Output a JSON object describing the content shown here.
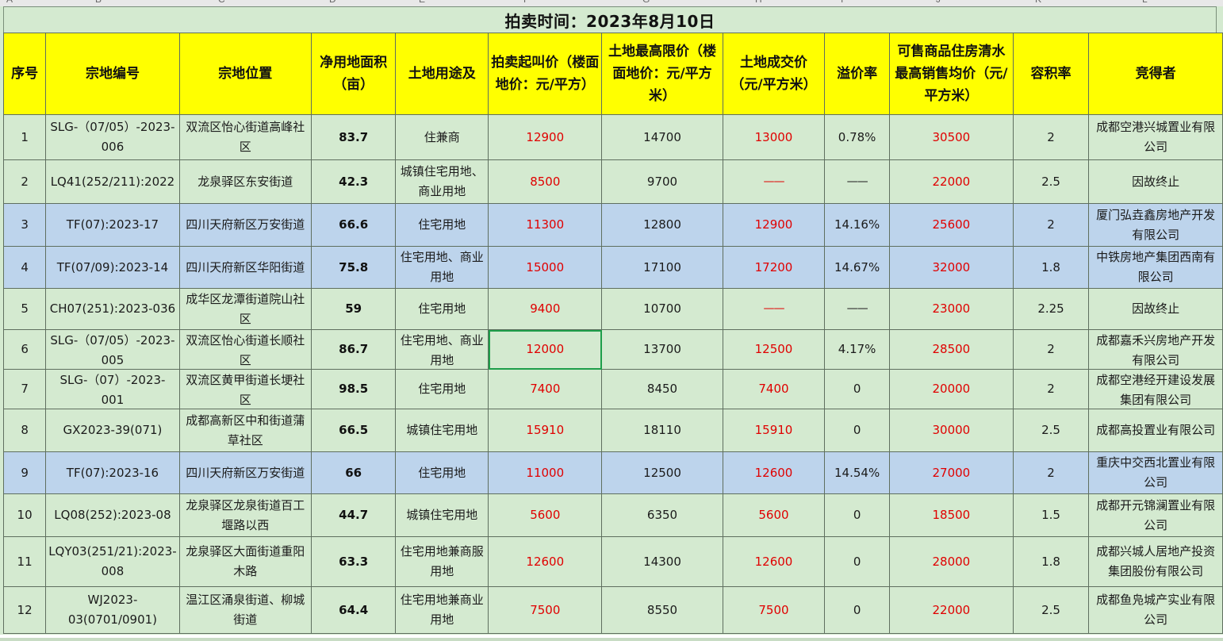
{
  "title": "拍卖时间：2023年8月10日",
  "column_letters": [
    "A",
    "B",
    "C",
    "D",
    "E",
    "F",
    "G",
    "H",
    "I",
    "J",
    "K",
    "L"
  ],
  "headers": {
    "seq": "序号",
    "code": "宗地编号",
    "location": "宗地位置",
    "area": "净用地面积（亩）",
    "usage": "土地用途及",
    "start_price": "拍卖起叫价（楼面地价：元/平方）",
    "max_price": "土地最高限价（楼面地价：元/平方米）",
    "deal_price": "土地成交价（元/平方米）",
    "premium": "溢价率",
    "sale_price": "可售商品住房清水最高销售均价（元/平方米）",
    "far": "容积率",
    "winner": "竞得者"
  },
  "rows": [
    {
      "seq": "1",
      "code": "SLG-（07/05）-2023-006",
      "location": "双流区怡心街道高峰社区",
      "area": "83.7",
      "usage": "住兼商",
      "start_price": "12900",
      "max_price": "14700",
      "deal_price": "13000",
      "premium": "0.78%",
      "sale_price": "30500",
      "far": "2",
      "winner": "成都空港兴城置业有限公司",
      "tint": "green"
    },
    {
      "seq": "2",
      "code": "LQ41(252/211):2022",
      "location": "龙泉驿区东安街道",
      "area": "42.3",
      "usage": "城镇住宅用地、商业用地",
      "start_price": "8500",
      "max_price": "9700",
      "deal_price": "——",
      "premium": "——",
      "sale_price": "22000",
      "far": "2.5",
      "winner": "因故终止",
      "tint": "green"
    },
    {
      "seq": "3",
      "code": "TF(07):2023-17",
      "location": "四川天府新区万安街道",
      "area": "66.6",
      "usage": "住宅用地",
      "start_price": "11300",
      "max_price": "12800",
      "deal_price": "12900",
      "premium": "14.16%",
      "sale_price": "25600",
      "far": "2",
      "winner": "厦门弘垚鑫房地产开发有限公司",
      "tint": "blue"
    },
    {
      "seq": "4",
      "code": "TF(07/09):2023-14",
      "location": "四川天府新区华阳街道",
      "area": "75.8",
      "usage": "住宅用地、商业用地",
      "start_price": "15000",
      "max_price": "17100",
      "deal_price": "17200",
      "premium": "14.67%",
      "sale_price": "32000",
      "far": "1.8",
      "winner": "中铁房地产集团西南有限公司",
      "tint": "blue"
    },
    {
      "seq": "5",
      "code": "CH07(251):2023-036",
      "location": "成华区龙潭街道院山社区",
      "area": "59",
      "usage": "住宅用地",
      "start_price": "9400",
      "max_price": "10700",
      "deal_price": "——",
      "premium": "——",
      "sale_price": "23000",
      "far": "2.25",
      "winner": "因故终止",
      "tint": "green"
    },
    {
      "seq": "6",
      "code": "SLG-（07/05）-2023-005",
      "location": "双流区怡心街道长顺社区",
      "area": "86.7",
      "usage": "住宅用地、商业用地",
      "start_price": "12000",
      "max_price": "13700",
      "deal_price": "12500",
      "premium": "4.17%",
      "sale_price": "28500",
      "far": "2",
      "winner": "成都嘉禾兴房地产开发有限公司",
      "tint": "green"
    },
    {
      "seq": "7",
      "code": "SLG-（07）-2023-001",
      "location": "双流区黄甲街道长埂社区",
      "area": "98.5",
      "usage": "住宅用地",
      "start_price": "7400",
      "max_price": "8450",
      "deal_price": "7400",
      "premium": "0",
      "sale_price": "20000",
      "far": "2",
      "winner": "成都空港经开建设发展集团有限公司",
      "tint": "green"
    },
    {
      "seq": "8",
      "code": "GX2023-39(071)",
      "location": "成都高新区中和街道蒲草社区",
      "area": "66.5",
      "usage": "城镇住宅用地",
      "start_price": "15910",
      "max_price": "18110",
      "deal_price": "15910",
      "premium": "0",
      "sale_price": "30000",
      "far": "2.5",
      "winner": "成都高投置业有限公司",
      "tint": "green"
    },
    {
      "seq": "9",
      "code": "TF(07):2023-16",
      "location": "四川天府新区万安街道",
      "area": "66",
      "usage": "住宅用地",
      "start_price": "11000",
      "max_price": "12500",
      "deal_price": "12600",
      "premium": "14.54%",
      "sale_price": "27000",
      "far": "2",
      "winner": "重庆中交西北置业有限公司",
      "tint": "blue"
    },
    {
      "seq": "10",
      "code": "LQ08(252):2023-08",
      "location": "龙泉驿区龙泉街道百工堰路以西",
      "area": "44.7",
      "usage": "城镇住宅用地",
      "start_price": "5600",
      "max_price": "6350",
      "deal_price": "5600",
      "premium": "0",
      "sale_price": "18500",
      "far": "1.5",
      "winner": "成都开元锦澜置业有限公司",
      "tint": "green"
    },
    {
      "seq": "11",
      "code": "LQY03(251/21):2023-008",
      "location": "龙泉驿区大面街道重阳木路",
      "area": "63.3",
      "usage": "住宅用地兼商服用地",
      "start_price": "12600",
      "max_price": "14300",
      "deal_price": "12600",
      "premium": "0",
      "sale_price": "28000",
      "far": "1.8",
      "winner": "成都兴城人居地产投资集团股份有限公司",
      "tint": "green"
    },
    {
      "seq": "12",
      "code": "WJ2023-03(0701/0901)",
      "location": "温江区涌泉街道、柳城街道",
      "area": "64.4",
      "usage": "住宅用地兼商业用地",
      "start_price": "7500",
      "max_price": "8550",
      "deal_price": "7500",
      "premium": "0",
      "sale_price": "22000",
      "far": "2.5",
      "winner": "成都鱼凫城产实业有限公司",
      "tint": "green"
    }
  ],
  "colors": {
    "header_bg": "#ffff00",
    "row_green": "#d4ead0",
    "row_blue": "#bdd4ec",
    "price_red": "#e00000",
    "selection": "#1e9e4a"
  }
}
